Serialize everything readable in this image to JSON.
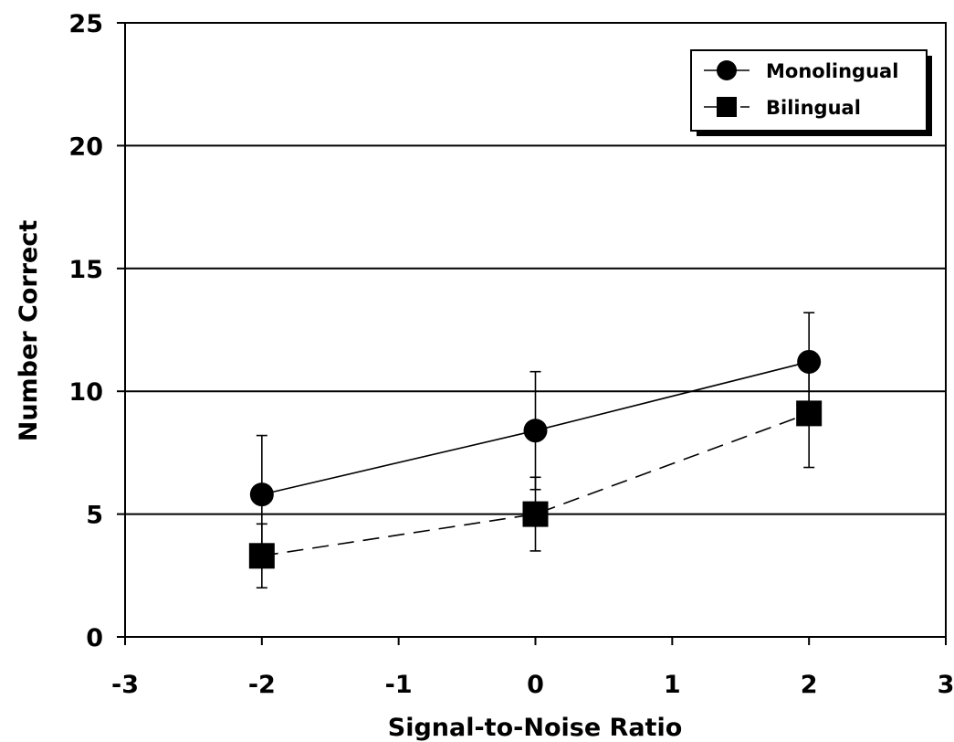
{
  "chart_data": {
    "type": "line",
    "title": "",
    "xlabel": "Signal-to-Noise Ratio",
    "ylabel": "Number Correct",
    "xlim": [
      -3,
      3
    ],
    "ylim": [
      0,
      25
    ],
    "xticks": [
      -3,
      -2,
      -1,
      0,
      1,
      2,
      3
    ],
    "yticks": [
      0,
      5,
      10,
      15,
      20,
      25
    ],
    "xtick_labels": [
      "-3",
      "-2",
      "-1",
      "0",
      "1",
      "2",
      "3"
    ],
    "ytick_labels": [
      "0",
      "5",
      "10",
      "15",
      "20",
      "25"
    ],
    "grid": "horizontal",
    "legend_position": "top-right",
    "x": [
      -2,
      0,
      2
    ],
    "series": [
      {
        "name": "Monolingual",
        "marker": "circle",
        "line_style": "solid",
        "color": "#000000",
        "values": [
          5.8,
          8.4,
          11.2
        ],
        "error": [
          2.4,
          2.4,
          2.0
        ]
      },
      {
        "name": "Bilingual",
        "marker": "square",
        "line_style": "dashed",
        "color": "#000000",
        "values": [
          3.3,
          5.0,
          9.1
        ],
        "error": [
          1.3,
          1.5,
          2.2
        ]
      }
    ]
  }
}
